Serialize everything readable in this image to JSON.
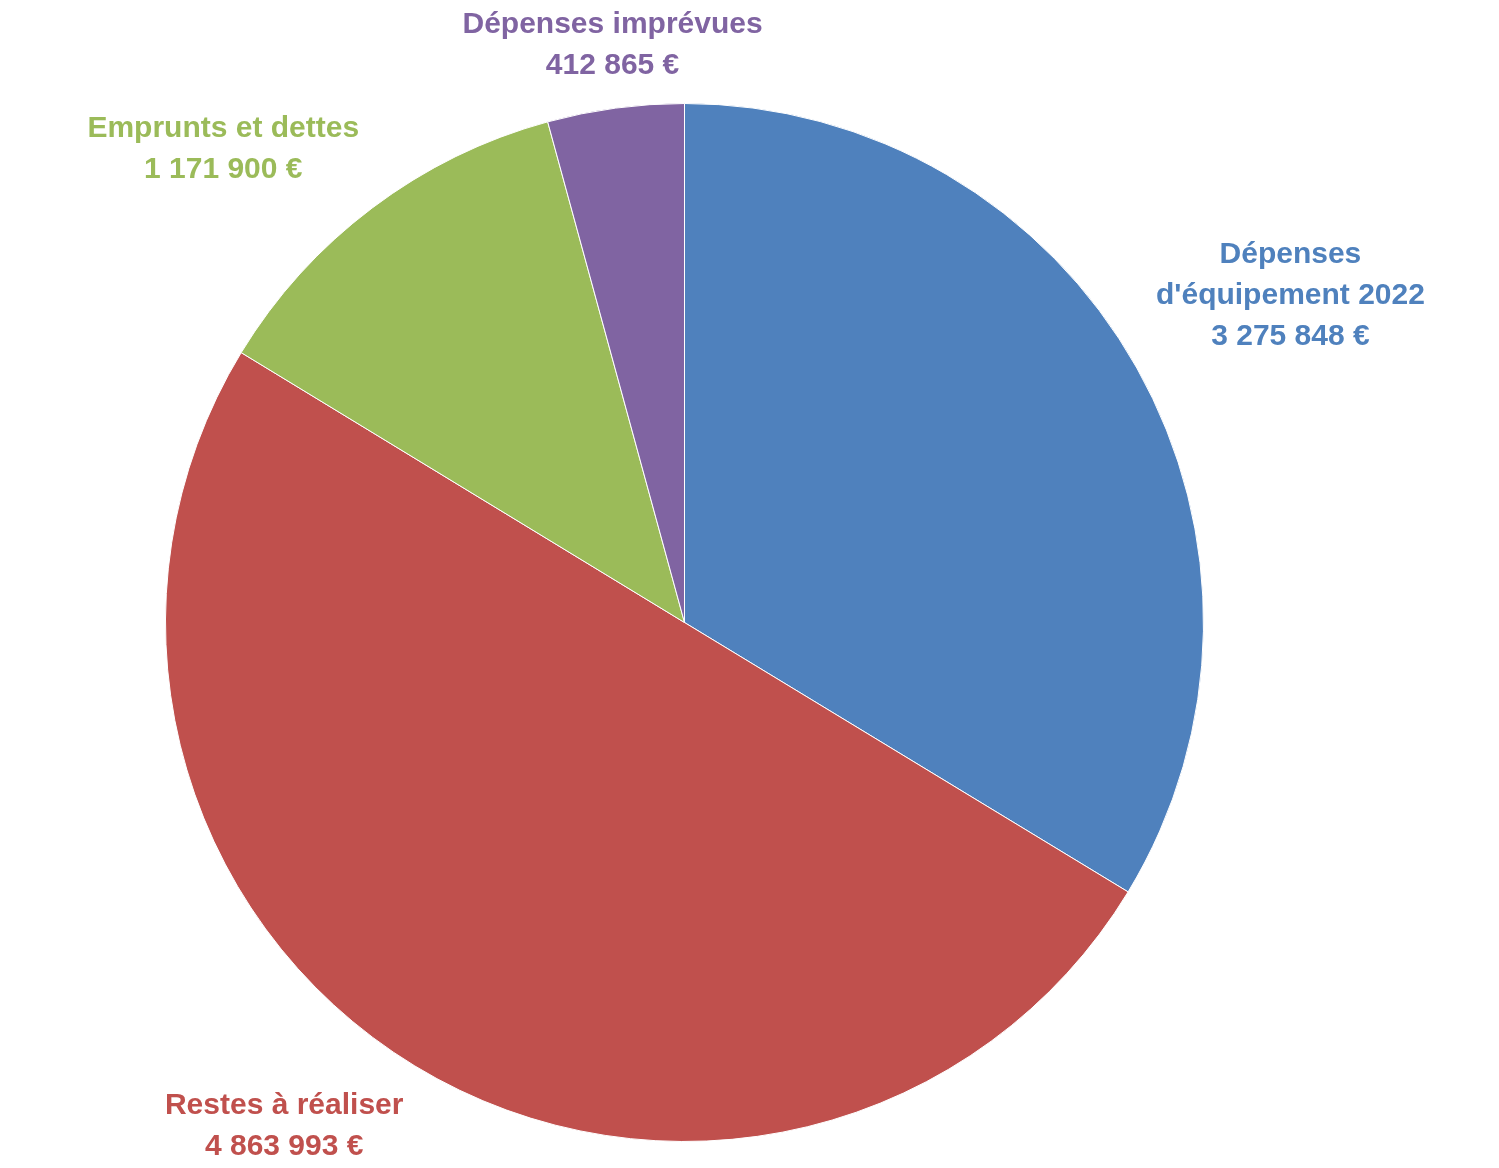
{
  "chart_data": {
    "type": "pie",
    "categories": [
      "Dépenses d'équipement 2022",
      "Restes à réaliser",
      "Emprunts et dettes",
      "Dépenses imprévues"
    ],
    "values": [
      3275848,
      4863993,
      1171900,
      412865
    ],
    "value_labels": [
      "3 275 848 €",
      "4 863 993 €",
      "1 171 900 €",
      "412 865 €"
    ],
    "colors": [
      "#4f81bd",
      "#c0504d",
      "#9bbb59",
      "#8064a2"
    ],
    "legend": false
  }
}
